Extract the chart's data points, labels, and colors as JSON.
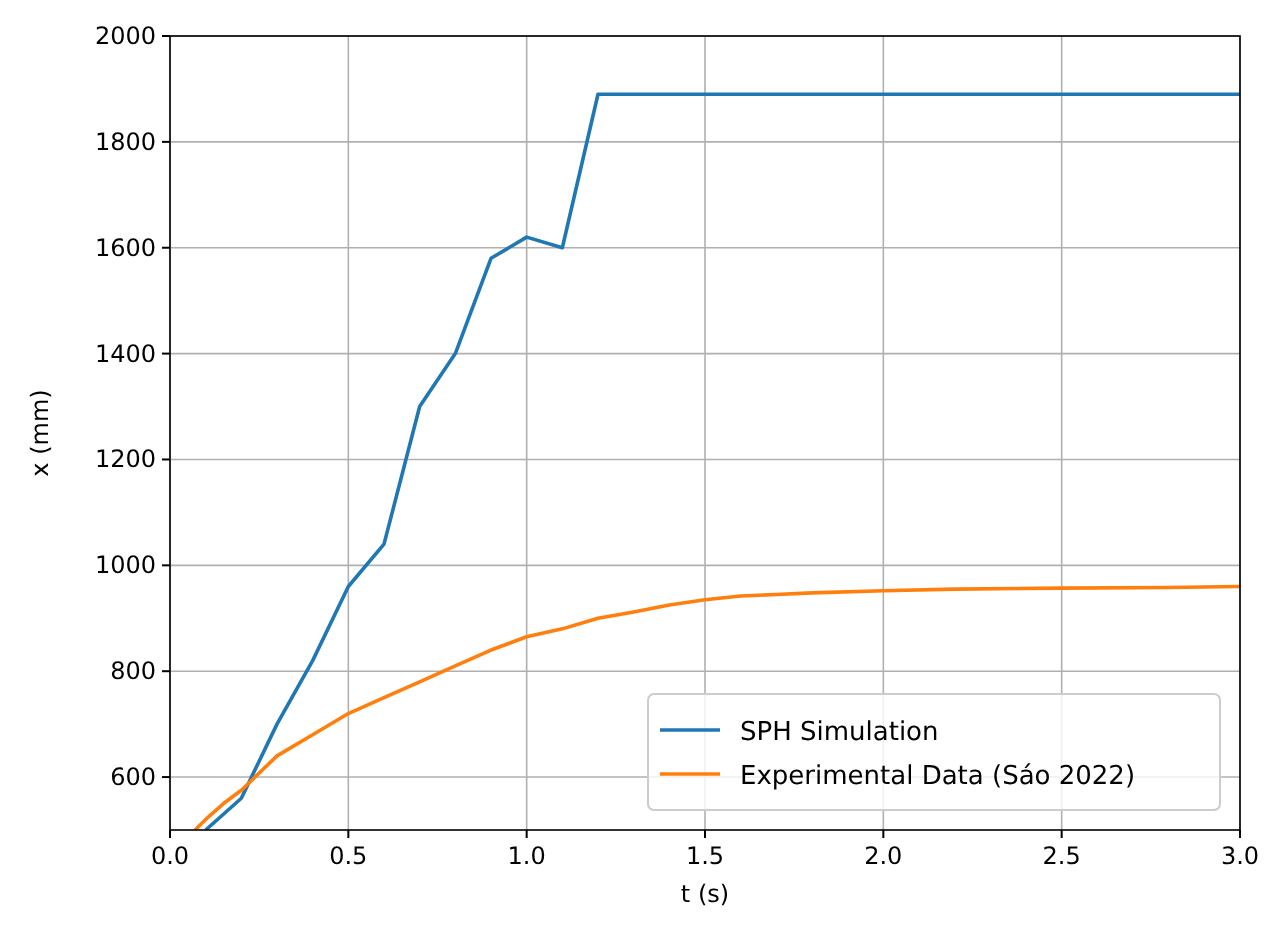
{
  "chart_data": {
    "type": "line",
    "xlabel": "t (s)",
    "ylabel": "x (mm)",
    "xlim": [
      0,
      3
    ],
    "ylim": [
      500,
      2000
    ],
    "xticks": [
      {
        "value": 0,
        "label": "0.0"
      },
      {
        "value": 0.5,
        "label": "0.5"
      },
      {
        "value": 1,
        "label": "1.0"
      },
      {
        "value": 1.5,
        "label": "1.5"
      },
      {
        "value": 2,
        "label": "2.0"
      },
      {
        "value": 2.5,
        "label": "2.5"
      },
      {
        "value": 3,
        "label": "3.0"
      }
    ],
    "yticks": [
      600,
      800,
      1000,
      1200,
      1400,
      1600,
      1800,
      2000
    ],
    "grid": true,
    "legend": "bottom right",
    "series": [
      {
        "name": "SPH Simulation",
        "color": "#1f77b4",
        "x": [
          0.1,
          0.2,
          0.3,
          0.4,
          0.5,
          0.6,
          0.7,
          0.8,
          0.9,
          1.0,
          1.1,
          1.2,
          3.0
        ],
        "values": [
          500,
          560,
          700,
          820,
          960,
          1040,
          1300,
          1400,
          1580,
          1620,
          1600,
          1890,
          1890
        ]
      },
      {
        "name": "Experimental Data (Sáo 2022)",
        "color": "#ff7f0e",
        "x": [
          0.07,
          0.1,
          0.15,
          0.2,
          0.3,
          0.4,
          0.5,
          0.6,
          0.7,
          0.8,
          0.9,
          1.0,
          1.1,
          1.2,
          1.3,
          1.4,
          1.5,
          1.6,
          1.7,
          1.8,
          2.0,
          2.2,
          2.5,
          2.8,
          3.0
        ],
        "values": [
          500,
          520,
          550,
          575,
          640,
          680,
          720,
          750,
          780,
          810,
          840,
          865,
          880,
          900,
          912,
          925,
          935,
          942,
          945,
          948,
          952,
          955,
          957,
          958,
          960
        ]
      }
    ]
  }
}
